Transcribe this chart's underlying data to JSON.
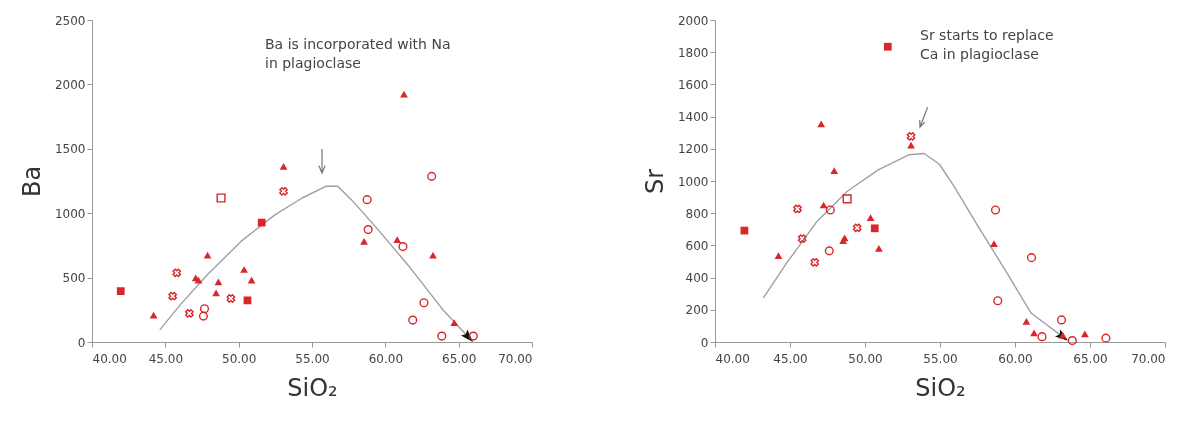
{
  "chart_data": [
    {
      "type": "scatter",
      "xlabel": "SiO₂",
      "ylabel": "Ba",
      "xlim": [
        40,
        70
      ],
      "xticks": [
        {
          "value": 40,
          "label": "40.00"
        },
        {
          "value": 45,
          "label": "45.00"
        },
        {
          "value": 50,
          "label": "50.00"
        },
        {
          "value": 55,
          "label": "55.00"
        },
        {
          "value": 60,
          "label": "60.00"
        },
        {
          "value": 65,
          "label": "65.00"
        },
        {
          "value": 70,
          "label": "70.00"
        }
      ],
      "ylim": [
        0,
        2500
      ],
      "yticks": [
        0,
        500,
        1000,
        1500,
        2000,
        2500
      ],
      "grid": false,
      "annotations": [
        "Ba is incorporated with Na\nin plagioclase"
      ],
      "series": [
        {
          "type": "line",
          "color": "#a0a0a0",
          "line_style": "solid",
          "marker": "none",
          "x": [
            44.65,
            46.04,
            47.88,
            50.18,
            52.49,
            54.33,
            55.94,
            56.75,
            57.79,
            59.4,
            61.7,
            64.0,
            65.6
          ],
          "values": [
            98,
            292,
            524,
            783,
            989,
            1118,
            1209,
            1209,
            1092,
            886,
            576,
            240,
            46
          ]
        },
        {
          "color": "#d8262b",
          "marker": "square",
          "x": [
            41.96,
            51.57,
            50.6
          ],
          "values": [
            395,
            927,
            323
          ]
        },
        {
          "color": "#d8262b",
          "marker": "square",
          "x": [
            48.8
          ],
          "values": [
            1118
          ]
        },
        {
          "color": "#d8262b",
          "marker": "triangle",
          "x": [
            44.2,
            53.06,
            47.88,
            47.07,
            47.26,
            48.62,
            48.46,
            50.37,
            50.88,
            58.55,
            60.81,
            63.25,
            64.7,
            61.27
          ],
          "values": [
            209,
            1364,
            674,
            498,
            480,
            467,
            382,
            563,
            480,
            782,
            795,
            674,
            150,
            1924
          ]
        },
        {
          "color": "#d8262b",
          "marker": "cross",
          "x": [
            45.78,
            45.5,
            46.64,
            49.47,
            53.06
          ],
          "values": [
            537,
            356,
            222,
            338,
            1170
          ]
        },
        {
          "color": "#d8262b",
          "marker": "circle",
          "x": [
            47.67,
            47.6,
            58.76,
            58.83,
            61.2,
            63.16,
            62.63,
            61.87,
            63.85,
            66.0
          ],
          "values": [
            258,
            201,
            1105,
            873,
            741,
            1286,
            305,
            170,
            46,
            46
          ]
        }
      ]
    },
    {
      "type": "scatter",
      "xlabel": "SiO₂",
      "ylabel": "Sr",
      "xlim": [
        40,
        70
      ],
      "xticks": [
        {
          "value": 40,
          "label": "40.00"
        },
        {
          "value": 45,
          "label": "45.00"
        },
        {
          "value": 50,
          "label": "50.00"
        },
        {
          "value": 55,
          "label": "55.00"
        },
        {
          "value": 60,
          "label": "60.00"
        },
        {
          "value": 65,
          "label": "65.00"
        },
        {
          "value": 70,
          "label": "70.00"
        }
      ],
      "ylim": [
        0,
        2000
      ],
      "yticks": [
        0,
        200,
        400,
        600,
        800,
        1000,
        1200,
        1400,
        1600,
        1800,
        2000
      ],
      "grid": false,
      "annotations": [
        "Sr starts to replace\nCa in plagioclase"
      ],
      "series": [
        {
          "type": "line",
          "color": "#a0a0a0",
          "line_style": "solid",
          "marker": "none",
          "x": [
            43.24,
            44.76,
            46.8,
            48.84,
            50.88,
            52.92,
            53.94,
            54.96,
            55.97,
            57.5,
            59.54,
            61.07,
            63.1
          ],
          "values": [
            275,
            488,
            749,
            938,
            1069,
            1163,
            1171,
            1104,
            962,
            725,
            417,
            180,
            38
          ]
        },
        {
          "color": "#d8262b",
          "marker": "square",
          "x": [
            41.96,
            51.52,
            50.65
          ],
          "values": [
            692,
            1834,
            706
          ]
        },
        {
          "color": "#d8262b",
          "marker": "square",
          "x": [
            48.81
          ],
          "values": [
            889
          ]
        },
        {
          "color": "#d8262b",
          "marker": "triangle",
          "x": [
            44.23,
            47.08,
            47.95,
            47.24,
            48.54,
            48.64,
            50.37,
            50.93,
            53.07,
            58.6,
            60.76,
            61.27,
            63.18,
            64.66
          ],
          "values": [
            536,
            1355,
            1064,
            851,
            630,
            647,
            773,
            581,
            1223,
            611,
            128,
            57,
            43,
            50
          ]
        },
        {
          "color": "#d8262b",
          "marker": "cross",
          "x": [
            45.5,
            45.81,
            46.65,
            49.48,
            53.07
          ],
          "values": [
            827,
            642,
            495,
            709,
            1277
          ]
        },
        {
          "color": "#d8262b",
          "marker": "circle",
          "x": [
            47.69,
            47.62,
            58.7,
            58.85,
            61.1,
            63.1,
            61.8,
            63.82,
            66.06
          ],
          "values": [
            820,
            566,
            820,
            256,
            524,
            137,
            33,
            9,
            24
          ]
        }
      ]
    }
  ]
}
